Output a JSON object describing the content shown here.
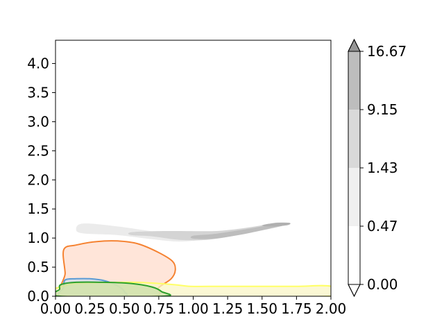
{
  "chart_data": {
    "type": "contour",
    "title": "",
    "xlabel": "",
    "ylabel": "",
    "xlim": [
      0.0,
      2.0
    ],
    "ylim": [
      0.0,
      4.4
    ],
    "xticks": [
      "0.00",
      "0.25",
      "0.50",
      "0.75",
      "1.00",
      "1.25",
      "1.50",
      "1.75",
      "2.00"
    ],
    "xtick_values": [
      0.0,
      0.25,
      0.5,
      0.75,
      1.0,
      1.25,
      1.5,
      1.75,
      2.0
    ],
    "yticks": [
      "0.0",
      "0.5",
      "1.0",
      "1.5",
      "2.0",
      "2.5",
      "3.0",
      "3.5",
      "4.0"
    ],
    "ytick_values": [
      0.0,
      0.5,
      1.0,
      1.5,
      2.0,
      2.5,
      3.0,
      3.5,
      4.0
    ],
    "grid": false,
    "colorbar": {
      "labels": [
        "0.00",
        "0.47",
        "1.43",
        "9.15",
        "16.67"
      ],
      "colors": [
        "#ffffff",
        "#f0f0f0",
        "#d9d9d9",
        "#bdbdbd",
        "#969696"
      ],
      "extend": "both"
    },
    "filled_contours": [
      {
        "level": "0.47-1.43",
        "color": "#ebebeb",
        "points": [
          [
            0.2,
            1.25
          ],
          [
            0.45,
            1.2
          ],
          [
            0.75,
            1.1
          ],
          [
            0.95,
            1.06
          ],
          [
            1.15,
            1.1
          ],
          [
            1.3,
            1.14
          ],
          [
            1.5,
            1.22
          ],
          [
            1.62,
            1.27
          ],
          [
            1.66,
            1.22
          ],
          [
            1.5,
            1.13
          ],
          [
            1.3,
            1.06
          ],
          [
            1.1,
            0.98
          ],
          [
            0.9,
            0.94
          ],
          [
            0.7,
            0.98
          ],
          [
            0.45,
            1.05
          ],
          [
            0.2,
            1.08
          ],
          [
            0.15,
            1.15
          ]
        ]
      },
      {
        "level": "1.43-9.15",
        "color": "#d4d4d4",
        "points": [
          [
            0.55,
            1.1
          ],
          [
            0.75,
            1.12
          ],
          [
            0.95,
            1.12
          ],
          [
            1.15,
            1.12
          ],
          [
            1.3,
            1.15
          ],
          [
            1.45,
            1.2
          ],
          [
            1.6,
            1.26
          ],
          [
            1.68,
            1.25
          ],
          [
            1.5,
            1.14
          ],
          [
            1.3,
            1.04
          ],
          [
            1.1,
            0.97
          ],
          [
            0.9,
            0.97
          ],
          [
            0.7,
            1.03
          ],
          [
            0.55,
            1.05
          ]
        ]
      },
      {
        "level": "9.15-16.67",
        "color": "#bdbdbd",
        "points": [
          [
            1.0,
            1.04
          ],
          [
            1.15,
            1.07
          ],
          [
            1.35,
            1.14
          ],
          [
            1.5,
            1.2
          ],
          [
            1.62,
            1.24
          ],
          [
            1.68,
            1.23
          ],
          [
            1.55,
            1.16
          ],
          [
            1.35,
            1.06
          ],
          [
            1.15,
            0.99
          ],
          [
            1.0,
            0.99
          ]
        ]
      },
      {
        "level": "9.15-16.67",
        "color": "#b0b0b0",
        "points": [
          [
            1.5,
            1.22
          ],
          [
            1.6,
            1.26
          ],
          [
            1.7,
            1.26
          ],
          [
            1.68,
            1.22
          ],
          [
            1.55,
            1.2
          ]
        ]
      }
    ],
    "series": [
      {
        "color": "#f58231",
        "fill": "#ffdccc",
        "points": [
          [
            0.06,
            0.8
          ],
          [
            0.15,
            0.88
          ],
          [
            0.3,
            0.94
          ],
          [
            0.45,
            0.95
          ],
          [
            0.6,
            0.9
          ],
          [
            0.75,
            0.75
          ],
          [
            0.85,
            0.6
          ],
          [
            0.87,
            0.45
          ],
          [
            0.84,
            0.3
          ],
          [
            0.75,
            0.15
          ],
          [
            0.7,
            0.0
          ],
          [
            0.08,
            0.0
          ],
          [
            0.07,
            0.4
          ]
        ]
      },
      {
        "color": "#5b9bd5",
        "fill": "#cfdcec",
        "points": [
          [
            0.07,
            0.28
          ],
          [
            0.15,
            0.3
          ],
          [
            0.25,
            0.3
          ],
          [
            0.35,
            0.27
          ],
          [
            0.45,
            0.18
          ],
          [
            0.5,
            0.08
          ],
          [
            0.48,
            0.0
          ],
          [
            0.05,
            0.0
          ],
          [
            0.06,
            0.15
          ]
        ]
      },
      {
        "color": "#ffff66",
        "fill": "#f9f5c6",
        "points": [
          [
            0.08,
            0.19
          ],
          [
            0.3,
            0.23
          ],
          [
            0.55,
            0.24
          ],
          [
            0.75,
            0.22
          ],
          [
            0.9,
            0.19
          ],
          [
            0.98,
            0.17
          ],
          [
            1.2,
            0.17
          ],
          [
            1.5,
            0.17
          ],
          [
            1.75,
            0.17
          ],
          [
            2.0,
            0.17
          ],
          [
            2.0,
            0.0
          ],
          [
            0.08,
            0.0
          ]
        ]
      },
      {
        "color": "#2ca02c",
        "fill": "#c9dfa8",
        "points": [
          [
            0.04,
            0.2
          ],
          [
            0.15,
            0.24
          ],
          [
            0.35,
            0.24
          ],
          [
            0.55,
            0.22
          ],
          [
            0.7,
            0.16
          ],
          [
            0.77,
            0.08
          ],
          [
            0.78,
            0.0
          ],
          [
            0.03,
            0.0
          ],
          [
            0.03,
            0.12
          ]
        ]
      }
    ]
  }
}
